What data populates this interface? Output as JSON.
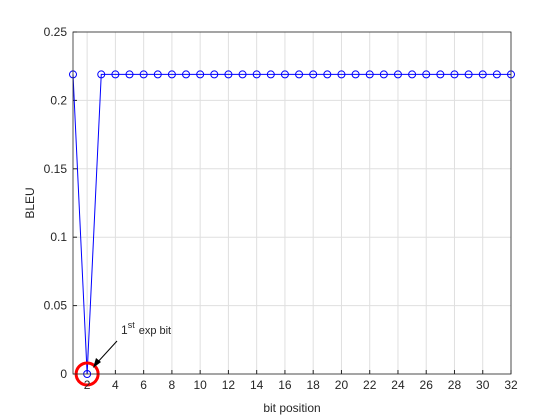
{
  "chart_data": {
    "type": "line",
    "xlabel": "bit position",
    "ylabel": "BLEU",
    "x": [
      1,
      2,
      3,
      4,
      5,
      6,
      7,
      8,
      9,
      10,
      11,
      12,
      13,
      14,
      15,
      16,
      17,
      18,
      19,
      20,
      21,
      22,
      23,
      24,
      25,
      26,
      27,
      28,
      29,
      30,
      31,
      32
    ],
    "values": [
      0.219,
      0,
      0.219,
      0.219,
      0.219,
      0.219,
      0.219,
      0.219,
      0.219,
      0.219,
      0.219,
      0.219,
      0.219,
      0.219,
      0.219,
      0.219,
      0.219,
      0.219,
      0.219,
      0.219,
      0.219,
      0.219,
      0.219,
      0.219,
      0.219,
      0.219,
      0.219,
      0.219,
      0.219,
      0.219,
      0.219,
      0.219
    ],
    "color": "#0000ff",
    "marker": "circle",
    "xlim": [
      1,
      32
    ],
    "xticks": [
      2,
      4,
      6,
      8,
      10,
      12,
      14,
      16,
      18,
      20,
      22,
      24,
      26,
      28,
      30,
      32
    ],
    "ylim": [
      0,
      0.25
    ],
    "yticks": [
      0,
      0.05,
      0.1,
      0.15,
      0.2,
      0.25
    ],
    "grid": true,
    "annotation": {
      "base": "1",
      "sup": "st",
      "rest": "exp bit",
      "point_index": 1
    }
  }
}
